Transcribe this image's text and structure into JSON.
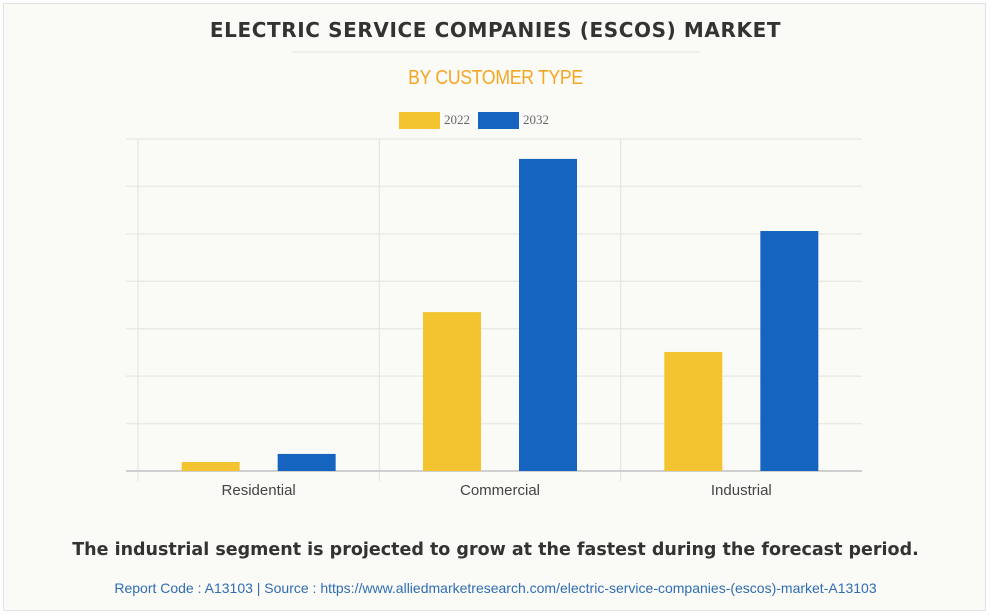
{
  "header": {
    "title": "ELECTRIC SERVICE COMPANIES (ESCOS) MARKET",
    "subtitle": "BY CUSTOMER TYPE"
  },
  "colors": {
    "series_2022": "#f4c430",
    "series_2032": "#1565c0",
    "subtitle": "#f5a623",
    "link": "#2f6db5"
  },
  "chart_data": {
    "type": "bar",
    "title": "ELECTRIC SERVICE COMPANIES (ESCOS) MARKET",
    "subtitle": "BY CUSTOMER TYPE",
    "categories": [
      "Residential",
      "Commercial",
      "Industrial"
    ],
    "series": [
      {
        "name": "2022",
        "color": "#f4c430",
        "values": [
          0.19,
          3.35,
          2.51
        ]
      },
      {
        "name": "2032",
        "color": "#1565c0",
        "values": [
          0.36,
          6.58,
          5.06
        ]
      }
    ],
    "xlabel": "",
    "ylabel": "",
    "y_units": "relative (gridline units; axis values not shown)",
    "ylim": [
      0,
      7
    ],
    "y_gridlines": 7,
    "grid": true,
    "legend": "top-center"
  },
  "footer": {
    "note": "The industrial segment is projected to grow at the fastest during the forecast period.",
    "source": "Report Code : A13103  |  Source : https://www.alliedmarketresearch.com/electric-service-companies-(escos)-market-A13103"
  }
}
